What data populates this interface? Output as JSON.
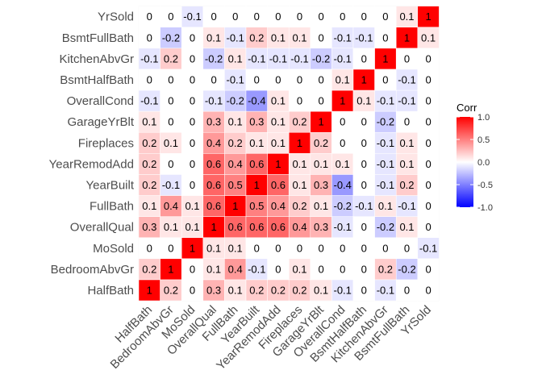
{
  "chart_data": {
    "type": "heatmap",
    "title": "",
    "xlabel": "",
    "ylabel": "",
    "variables": [
      "HalfBath",
      "BedroomAbvGr",
      "MoSold",
      "OverallQual",
      "FullBath",
      "YearBuilt",
      "YearRemodAdd",
      "Fireplaces",
      "GarageYrBlt",
      "OverallCond",
      "BsmtHalfBath",
      "KitchenAbvGr",
      "BsmtFullBath",
      "YrSold"
    ],
    "x_tick_labels": [
      "HalfBath",
      "BedroomAbvGr",
      "MoSold",
      "OverallQual",
      "FullBath",
      "YearBuilt",
      "YearRemodAdd",
      "Fireplaces",
      "GarageYrBlt",
      "OverallCond",
      "BsmtHalfBath",
      "KitchenAbvGr",
      "BsmtFullBath",
      "YrSold"
    ],
    "y_tick_labels": [
      "HalfBath",
      "BedroomAbvGr",
      "MoSold",
      "OverallQual",
      "FullBath",
      "YearBuilt",
      "YearRemodAdd",
      "Fireplaces",
      "GarageYrBlt",
      "OverallCond",
      "BsmtHalfBath",
      "KitchenAbvGr",
      "BsmtFullBath",
      "YrSold"
    ],
    "matrix": [
      [
        1,
        0.2,
        0,
        0.3,
        0.1,
        0.2,
        0.2,
        0.2,
        0.1,
        -0.1,
        0,
        -0.1,
        0,
        0
      ],
      [
        0.2,
        1,
        0,
        0.1,
        0.4,
        -0.1,
        0,
        0.1,
        0,
        0,
        0,
        0.2,
        -0.2,
        0
      ],
      [
        0,
        0,
        1,
        0.1,
        0.1,
        0,
        0,
        0,
        0,
        0,
        0,
        0,
        0,
        -0.1
      ],
      [
        0.3,
        0.1,
        0.1,
        1,
        0.6,
        0.6,
        0.6,
        0.4,
        0.3,
        -0.1,
        0,
        -0.2,
        0.1,
        0
      ],
      [
        0.1,
        0.4,
        0.1,
        0.6,
        1,
        0.5,
        0.4,
        0.2,
        0.1,
        -0.2,
        -0.1,
        0.1,
        -0.1,
        0
      ],
      [
        0.2,
        -0.1,
        0,
        0.6,
        0.5,
        1,
        0.6,
        0.1,
        0.3,
        -0.4,
        0,
        -0.1,
        0.2,
        0
      ],
      [
        0.2,
        0,
        0,
        0.6,
        0.4,
        0.6,
        1,
        0.1,
        0.1,
        0.1,
        0,
        -0.1,
        0.1,
        0
      ],
      [
        0.2,
        0.1,
        0,
        0.4,
        0.2,
        0.1,
        0.1,
        1,
        0.2,
        0,
        0,
        -0.1,
        0.1,
        0
      ],
      [
        0.1,
        0,
        0,
        0.3,
        0.1,
        0.3,
        0.1,
        0.2,
        1,
        0,
        0,
        -0.2,
        0,
        0
      ],
      [
        -0.1,
        0,
        0,
        -0.1,
        -0.2,
        -0.4,
        0.1,
        0,
        0,
        1,
        0.1,
        -0.1,
        -0.1,
        0
      ],
      [
        0,
        0,
        0,
        0,
        -0.1,
        0,
        0,
        0,
        0,
        0.1,
        1,
        0,
        -0.1,
        0
      ],
      [
        -0.1,
        0.2,
        0,
        -0.2,
        0.1,
        -0.1,
        -0.1,
        -0.1,
        -0.2,
        -0.1,
        0,
        1,
        0,
        0
      ],
      [
        0,
        -0.2,
        0,
        0.1,
        -0.1,
        0.2,
        0.1,
        0.1,
        0,
        -0.1,
        -0.1,
        0,
        1,
        0.1
      ],
      [
        0,
        0,
        -0.1,
        0,
        0,
        0,
        0,
        0,
        0,
        0,
        0,
        0,
        0.1,
        1
      ]
    ],
    "value_range": [
      -1,
      1
    ],
    "colors": {
      "low": "#0000FF",
      "mid": "#FFFFFF",
      "high": "#FF0000"
    },
    "grid": true,
    "legend": {
      "title": "Corr",
      "position": "right",
      "ticks": [
        1.0,
        0.5,
        0.0,
        -0.5,
        -1.0
      ],
      "tick_labels": [
        "1.0",
        "0.5",
        "0.0",
        "-0.5",
        "-1.0"
      ]
    }
  }
}
